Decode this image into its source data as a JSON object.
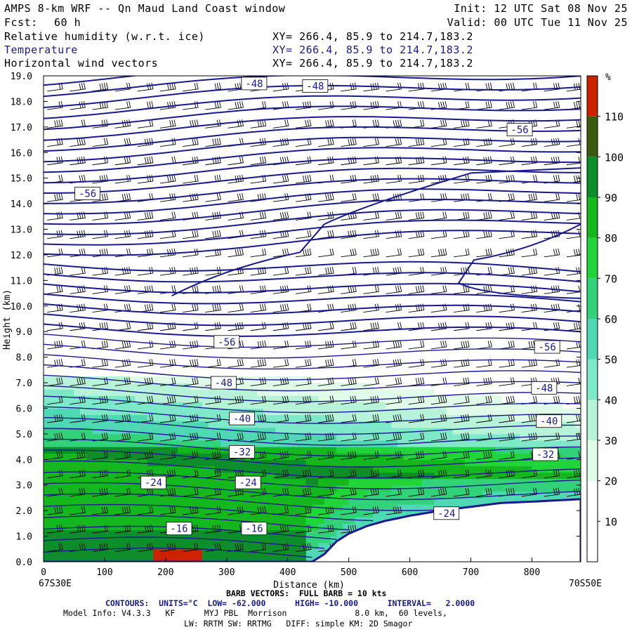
{
  "header": {
    "title": "AMPS 8-km WRF -- Qn Maud Land Coast window",
    "fcst_label": "Fcst:",
    "fcst_value": "60 h",
    "init": "Init: 12 UTC Sat 08 Nov 25",
    "valid": "Valid: 00 UTC Tue 11 Nov 25",
    "fields": [
      {
        "name": "Relative humidity (w.r.t. ice)",
        "xy": "XY= 266.4, 85.9 to 214.7,183.2"
      },
      {
        "name": "Temperature",
        "xy": "XY= 266.4, 85.9 to 214.7,183.2"
      },
      {
        "name": "Horizontal wind vectors",
        "xy": "XY= 266.4, 85.9 to 214.7,183.2"
      }
    ]
  },
  "colors": {
    "temperature_contour": "#1a1a8c",
    "rh_scale": [
      "#ffffff",
      "#ffffff",
      "#e0fbe8",
      "#b6f3d8",
      "#7ee9c8",
      "#4ed8b4",
      "#32d27a",
      "#20d43a",
      "#14b81e",
      "#0e8e2a",
      "#3c5a10",
      "#cc2200"
    ]
  },
  "chart_data": {
    "type": "heatmap",
    "title": "AMPS 8-km WRF -- Qn Maud Land Coast window",
    "xlabel": "Distance (km)",
    "ylabel": "Height (km)",
    "xlim": [
      0,
      880
    ],
    "ylim": [
      0,
      19
    ],
    "x_ticks": [
      0,
      100,
      200,
      300,
      400,
      500,
      600,
      700,
      800
    ],
    "y_ticks": [
      "0.0",
      "1.0",
      "2.0",
      "3.0",
      "4.0",
      "5.0",
      "6.0",
      "7.0",
      "8.0",
      "9.0",
      "10.0",
      "11.0",
      "12.0",
      "13.0",
      "14.0",
      "15.0",
      "16.0",
      "17.0",
      "18.0",
      "19.0"
    ],
    "x_end_labels": {
      "left": "67S30E",
      "right": "70S50E"
    },
    "colorbar": {
      "unit": "%",
      "levels": [
        10,
        20,
        30,
        40,
        50,
        60,
        70,
        80,
        90,
        100,
        110
      ],
      "bounds": [
        0,
        120
      ]
    },
    "terrain_height_km": [
      [
        0,
        0
      ],
      [
        440,
        0
      ],
      [
        460,
        0.3
      ],
      [
        480,
        0.8
      ],
      [
        500,
        1.1
      ],
      [
        530,
        1.4
      ],
      [
        560,
        1.6
      ],
      [
        600,
        1.8
      ],
      [
        650,
        2.0
      ],
      [
        700,
        2.15
      ],
      [
        750,
        2.3
      ],
      [
        800,
        2.35
      ],
      [
        880,
        2.45
      ]
    ],
    "temperature_contour_labels": [
      {
        "text": "-48",
        "x": 345,
        "y": 18.7
      },
      {
        "text": "-48",
        "x": 445,
        "y": 18.6
      },
      {
        "text": "-56",
        "x": 780,
        "y": 16.9
      },
      {
        "text": "-56",
        "x": 72,
        "y": 14.4
      },
      {
        "text": "-56",
        "x": 300,
        "y": 8.6
      },
      {
        "text": "-56",
        "x": 825,
        "y": 8.4
      },
      {
        "text": "-48",
        "x": 295,
        "y": 7.0
      },
      {
        "text": "-48",
        "x": 820,
        "y": 6.8
      },
      {
        "text": "-40",
        "x": 325,
        "y": 5.6
      },
      {
        "text": "-40",
        "x": 828,
        "y": 5.5
      },
      {
        "text": "-32",
        "x": 325,
        "y": 4.3
      },
      {
        "text": "-32",
        "x": 822,
        "y": 4.2
      },
      {
        "text": "-24",
        "x": 180,
        "y": 3.1
      },
      {
        "text": "-24",
        "x": 335,
        "y": 3.1
      },
      {
        "text": "-16",
        "x": 222,
        "y": 1.3
      },
      {
        "text": "-16",
        "x": 345,
        "y": 1.3
      },
      {
        "text": "-24",
        "x": 660,
        "y": 1.9
      }
    ]
  },
  "footer": {
    "barb": "BARB VECTORS:  FULL BARB = 10 kts",
    "contours": "CONTOURS:  UNITS=°C  LOW= -62.000      HIGH= -10.000      INTERVAL=   2.0000",
    "model1": "Model Info: V4.3.3   KF      MYJ PBL  Morrison              8.0 km,  60 levels,",
    "model2": "LW: RRTM SW: RRTMG   DIFF: simple KM: 2D Smagor"
  }
}
